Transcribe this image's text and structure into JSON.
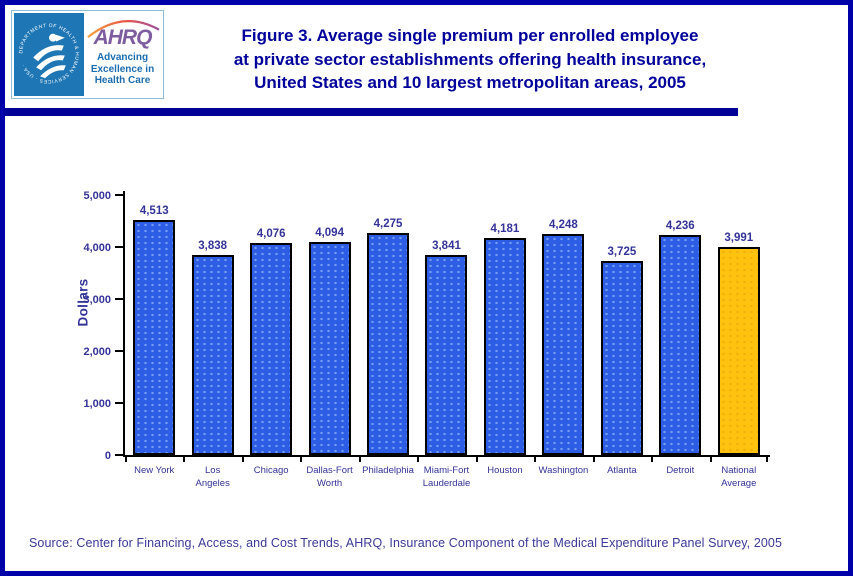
{
  "header": {
    "logo": {
      "hhs_seal_text": "DEPARTMENT OF HEALTH & HUMAN SERVICES · USA",
      "ahrq_acronym": "AHRQ",
      "ahrq_tagline": "Advancing\nExcellence in\nHealth Care"
    },
    "title": "Figure 3. Average single premium per enrolled employee\nat private sector establishments offering health insurance,\nUnited States and 10 largest metropolitan areas, 2005"
  },
  "chart_data": {
    "type": "bar",
    "title": "Average single premium per enrolled employee at private sector establishments offering health insurance, United States and 10 largest metropolitan areas, 2005",
    "categories": [
      "New York",
      "Los\nAngeles",
      "Chicago",
      "Dallas-Fort\nWorth",
      "Philadelphia",
      "Miami-Fort\nLauderdale",
      "Houston",
      "Washington",
      "Atlanta",
      "Detroit",
      "National\nAverage"
    ],
    "values": [
      4513,
      3838,
      4076,
      4094,
      4275,
      3841,
      4181,
      4248,
      3725,
      4236,
      3991
    ],
    "xlabel": "",
    "ylabel": "Dollars",
    "ylim": [
      0,
      5000
    ],
    "yticks": [
      0,
      1000,
      2000,
      3000,
      4000,
      5000
    ],
    "grid": false,
    "legend": null,
    "bar_color": "#2D5DE5",
    "highlight_color": "#FFC20E",
    "highlight_index": 10,
    "data_label_color": "#333399"
  },
  "footer": {
    "source": "Source: Center for Financing, Access, and Cost Trends, AHRQ, Insurance Component of the Medical Expenditure Panel Survey, 2005"
  }
}
